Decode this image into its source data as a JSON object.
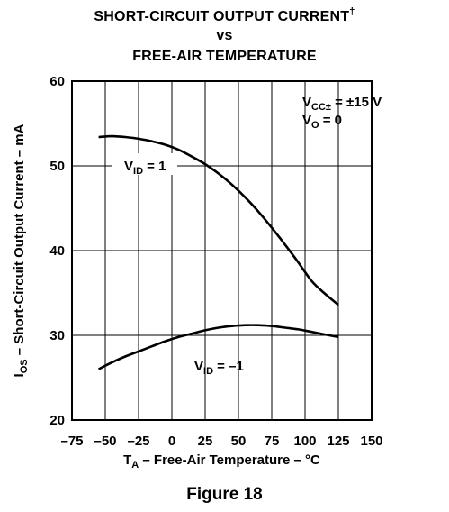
{
  "title": {
    "line1": "SHORT-CIRCUIT OUTPUT CURRENT",
    "dagger": "†",
    "line2": "vs",
    "line3": "FREE-AIR TEMPERATURE"
  },
  "caption": "Figure 18",
  "colors": {
    "line": "#000000",
    "background": "#ffffff"
  },
  "chart_data": {
    "type": "line",
    "title": "SHORT-CIRCUIT OUTPUT CURRENT† vs FREE-AIR TEMPERATURE",
    "xlabel": {
      "main": "T",
      "sub": "A",
      "rest": " – Free-Air Temperature – °C"
    },
    "ylabel": {
      "main": "I",
      "sub": "OS",
      "rest": " – Short-Circuit Output Current – mA"
    },
    "xlim": [
      -75,
      150
    ],
    "ylim": [
      20,
      60
    ],
    "x_ticks": [
      -75,
      -50,
      -25,
      0,
      25,
      50,
      75,
      100,
      125,
      150
    ],
    "x_tick_labels": [
      "–75",
      "–50",
      "–25",
      "0",
      "25",
      "50",
      "75",
      "100",
      "125",
      "150"
    ],
    "y_ticks": [
      20,
      30,
      40,
      50,
      60
    ],
    "y_tick_labels": [
      "20",
      "30",
      "40",
      "50",
      "60"
    ],
    "grid": true,
    "conditions": [
      {
        "main": "V",
        "sub": "CC±",
        "rest": " = ±15 V"
      },
      {
        "main": "V",
        "sub": "O",
        "rest": " = 0"
      }
    ],
    "series": [
      {
        "name": "VID = 1",
        "label": {
          "main": "V",
          "sub": "ID",
          "rest": " = 1"
        },
        "x": [
          -55,
          -45,
          -35,
          -25,
          -15,
          -5,
          5,
          15,
          25,
          35,
          45,
          55,
          65,
          75,
          85,
          95,
          105,
          115,
          125
        ],
        "y": [
          53.4,
          53.5,
          53.4,
          53.2,
          52.9,
          52.5,
          51.9,
          51.1,
          50.2,
          49.1,
          47.8,
          46.3,
          44.6,
          42.7,
          40.7,
          38.6,
          36.4,
          34.9,
          33.6
        ]
      },
      {
        "name": "VID = -1",
        "label": {
          "main": "V",
          "sub": "ID",
          "rest": " = –1"
        },
        "x": [
          -55,
          -45,
          -35,
          -25,
          -15,
          -5,
          5,
          15,
          25,
          35,
          45,
          55,
          65,
          75,
          85,
          95,
          105,
          115,
          125
        ],
        "y": [
          26.0,
          26.8,
          27.5,
          28.1,
          28.7,
          29.3,
          29.8,
          30.2,
          30.6,
          30.9,
          31.1,
          31.2,
          31.2,
          31.1,
          30.9,
          30.7,
          30.4,
          30.1,
          29.8
        ]
      }
    ]
  }
}
